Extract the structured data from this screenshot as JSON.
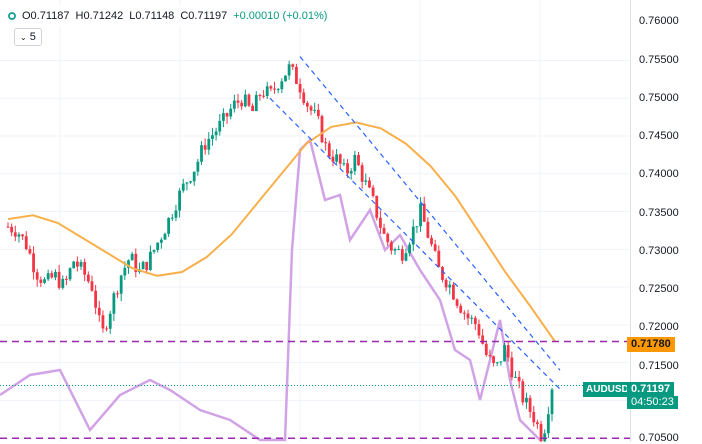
{
  "legend": {
    "open": "O0.71187",
    "high": "H0.71242",
    "low": "L0.71148",
    "close": "C0.71197",
    "change": "+0.00010 (+0.01%)"
  },
  "interval": {
    "label": "5"
  },
  "price_axis": {
    "ticks": [
      "0.76000",
      "0.75500",
      "0.75000",
      "0.74500",
      "0.74000",
      "0.73500",
      "0.73000",
      "0.72500",
      "0.72000",
      "0.71500",
      "0.70500"
    ]
  },
  "tags": {
    "level_price": "0.71780",
    "symbol": "AUDUSD",
    "last_price": "0.71197",
    "countdown": "04:50:23"
  },
  "colors": {
    "up": "#089981",
    "down": "#f23645",
    "ma": "#f7b04b",
    "indicator": "#d1a3e6",
    "channel": "#2962ff",
    "level": "#9c27b0",
    "level_tag": "#ff9800"
  },
  "chart_data": {
    "type": "candlestick",
    "symbol": "AUDUSD",
    "ylim": [
      0.7045,
      0.763
    ],
    "horizontal_level": 0.7178,
    "last_price": 0.71197,
    "close_path": [
      0.733,
      0.7325,
      0.7305,
      0.727,
      0.7255,
      0.7265,
      0.725,
      0.7285,
      0.727,
      0.725,
      0.7185,
      0.7225,
      0.7265,
      0.729,
      0.727,
      0.7285,
      0.731,
      0.7335,
      0.7365,
      0.739,
      0.741,
      0.744,
      0.7455,
      0.747,
      0.749,
      0.75,
      0.748,
      0.751,
      0.7505,
      0.7525,
      0.754,
      0.752,
      0.749,
      0.747,
      0.743,
      0.742,
      0.74,
      0.742,
      0.739,
      0.736,
      0.732,
      0.73,
      0.7295,
      0.732,
      0.735,
      0.731,
      0.727,
      0.7255,
      0.723,
      0.721,
      0.72,
      0.716,
      0.714,
      0.717,
      0.713,
      0.71,
      0.708,
      0.705,
      0.712
    ],
    "ma_path": [
      0.734,
      0.7345,
      0.7335,
      0.7315,
      0.7295,
      0.7275,
      0.7265,
      0.727,
      0.729,
      0.732,
      0.736,
      0.74,
      0.744,
      0.7462,
      0.7468,
      0.746,
      0.744,
      0.741,
      0.737,
      0.732,
      0.727,
      0.7225,
      0.7178
    ],
    "channel_lines": [
      {
        "from": [
          0.7505,
          0.45
        ],
        "to": [
          0.7125,
          0.9
        ]
      },
      {
        "from": [
          0.7555,
          0.48
        ],
        "to": [
          0.714,
          0.89
        ]
      }
    ]
  }
}
